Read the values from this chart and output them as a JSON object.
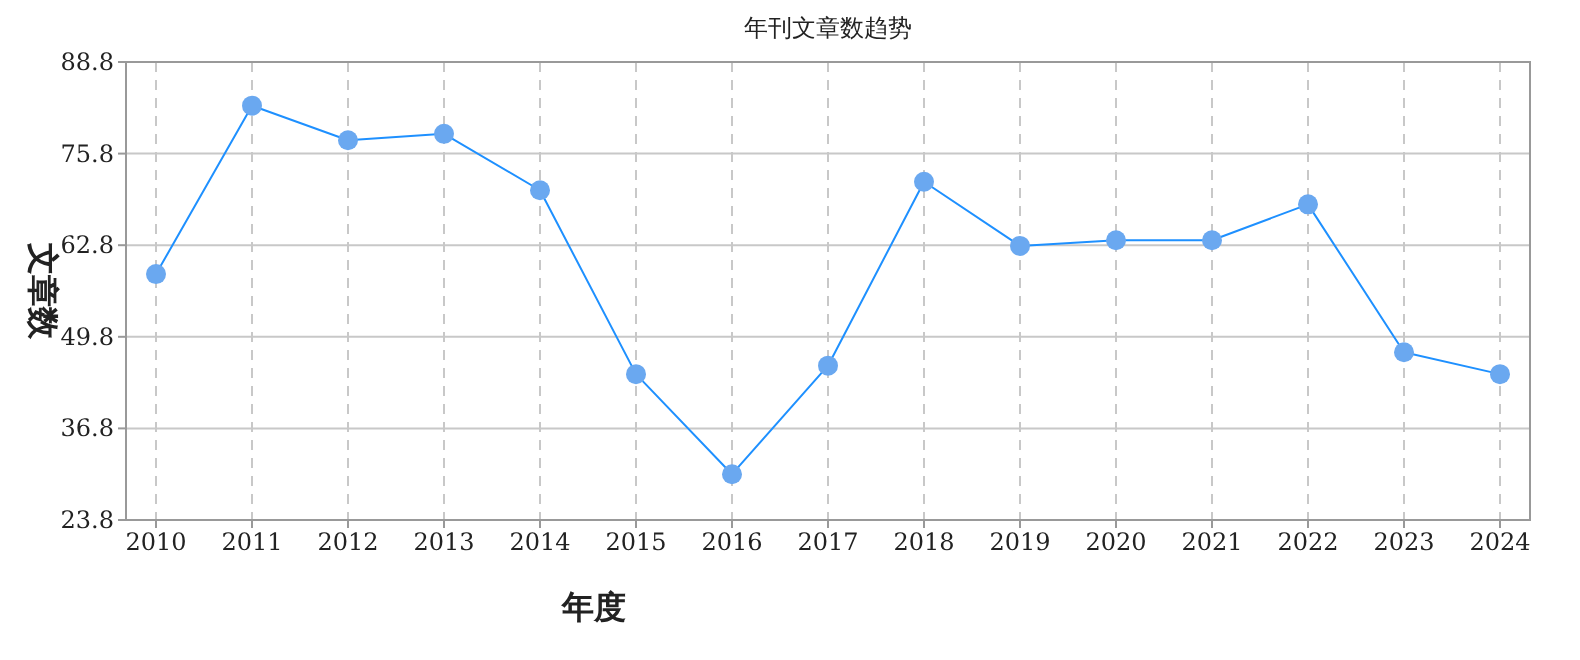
{
  "chart_data": {
    "type": "line",
    "title": "年刊文章数趋势",
    "xlabel": "年度",
    "ylabel": "文章数",
    "categories": [
      "2010",
      "2011",
      "2012",
      "2013",
      "2014",
      "2015",
      "2016",
      "2017",
      "2018",
      "2019",
      "2020",
      "2021",
      "2022",
      "2023",
      "2024"
    ],
    "series": [
      {
        "color": "#1e90ff",
        "values": [
          58.7,
          82.6,
          77.7,
          78.6,
          70.6,
          44.5,
          30.3,
          45.7,
          71.8,
          62.7,
          63.5,
          63.5,
          68.6,
          47.6,
          44.5
        ]
      }
    ],
    "ylim": [
      23.8,
      88.8
    ],
    "yticks": [
      23.8,
      36.8,
      49.8,
      62.8,
      75.8,
      88.8
    ],
    "grid": true,
    "marker": "circle",
    "line_style": "solid"
  }
}
